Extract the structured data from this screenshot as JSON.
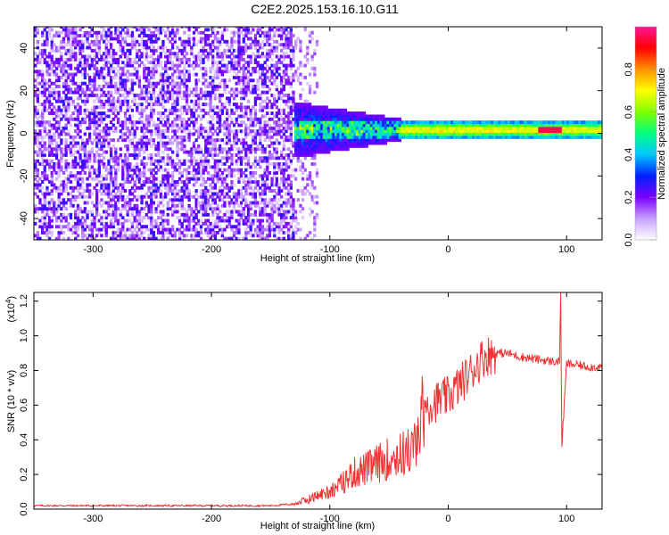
{
  "title": "C2E2.2025.153.16.10.G11",
  "chart_data": [
    {
      "type": "heatmap",
      "xlabel": "Height of straight line (km)",
      "ylabel": "Frequency (Hz)",
      "xlim": [
        -350,
        130
      ],
      "ylim": [
        -50,
        50
      ],
      "xticks": [
        -300,
        -200,
        -100,
        0,
        100
      ],
      "yticks": [
        -40,
        -20,
        0,
        20,
        40
      ],
      "colorbar": {
        "label": "Normalized spectral amplitude",
        "range": [
          0.0,
          1.0
        ],
        "ticks": [
          "0.0",
          "0.2",
          "0.4",
          "0.6",
          "0.8"
        ],
        "tick_values": [
          0.0,
          0.2,
          0.4,
          0.6,
          0.8
        ],
        "colors": [
          "#ffffff",
          "#c8a0ff",
          "#7a00ff",
          "#0020ff",
          "#00c8ff",
          "#00ff80",
          "#80ff00",
          "#ffff00",
          "#ff9000",
          "#ff0000",
          "#ff1493"
        ]
      },
      "regions": [
        {
          "x_range": [
            -350,
            -130
          ],
          "freq_range": [
            -50,
            50
          ],
          "amplitude": 0.15,
          "pattern": "diffuse noise"
        },
        {
          "x_range": [
            -140,
            -40
          ],
          "freq_range": [
            -12,
            15
          ],
          "amplitude": 0.35,
          "pattern": "broadening signal"
        },
        {
          "x_range": [
            -40,
            130
          ],
          "freq_center": 1,
          "freq_halfwidth": 3,
          "amplitude": 0.65,
          "pattern": "narrow carrier line"
        },
        {
          "x_range": [
            75,
            95
          ],
          "freq_center": 2,
          "amplitude": 0.95,
          "pattern": "peak"
        }
      ]
    },
    {
      "type": "line",
      "xlabel": "Height of straight line (km)",
      "ylabel": "SNR (10 * v/v)",
      "y_multiplier": "(x10",
      "y_multiplier_exp": "4",
      "y_multiplier_close": ")",
      "xlim": [
        -350,
        130
      ],
      "ylim": [
        0,
        1.25
      ],
      "xticks": [
        -300,
        -200,
        -100,
        0,
        100
      ],
      "yticks": [
        "0.0",
        "0.2",
        "0.4",
        "0.6",
        "0.8",
        "1.0",
        "1.2"
      ],
      "ytick_values": [
        0.0,
        0.2,
        0.4,
        0.6,
        0.8,
        1.0,
        1.2
      ],
      "color": "#ee3333",
      "x": [
        -350,
        -300,
        -250,
        -200,
        -150,
        -130,
        -120,
        -100,
        -90,
        -80,
        -70,
        -60,
        -50,
        -40,
        -30,
        -25,
        -20,
        -10,
        0,
        10,
        20,
        30,
        40,
        50,
        60,
        70,
        80,
        90,
        94,
        95,
        96,
        100,
        110,
        120,
        130
      ],
      "values": [
        0.02,
        0.02,
        0.02,
        0.02,
        0.02,
        0.03,
        0.05,
        0.1,
        0.14,
        0.2,
        0.22,
        0.25,
        0.28,
        0.3,
        0.33,
        0.4,
        0.6,
        0.62,
        0.65,
        0.72,
        0.8,
        0.88,
        0.9,
        0.9,
        0.88,
        0.87,
        0.86,
        0.85,
        0.85,
        1.25,
        0.36,
        0.84,
        0.83,
        0.82,
        0.82
      ]
    }
  ]
}
